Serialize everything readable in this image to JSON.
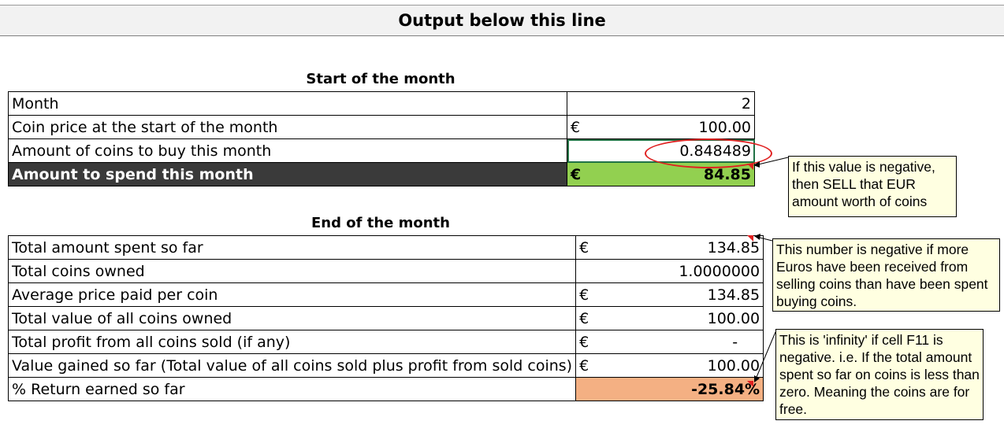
{
  "banner": {
    "title": "Output below this line"
  },
  "start_section": {
    "title": "Start of the month",
    "rows": [
      {
        "label": "Month",
        "currency": "",
        "value": "2"
      },
      {
        "label": "Coin price at the start of the month",
        "currency": "€",
        "value": "100.00"
      },
      {
        "label": "Amount of coins to buy this month",
        "currency": "",
        "value": "0.848489"
      },
      {
        "label": "Amount to spend this month",
        "currency": "€",
        "value": "84.85"
      }
    ]
  },
  "end_section": {
    "title": "End of the month",
    "rows": [
      {
        "label": "Total amount spent so far",
        "currency": "€",
        "value": "134.85"
      },
      {
        "label": "Total coins owned",
        "currency": "",
        "value": "1.0000000"
      },
      {
        "label": "Average price paid per coin",
        "currency": "€",
        "value": "134.85"
      },
      {
        "label": "Total value of all coins owned",
        "currency": "€",
        "value": "100.00"
      },
      {
        "label": "Total profit from all coins sold (if any)",
        "currency": "€",
        "value": "-"
      },
      {
        "label": "Value gained so far (Total value of all coins sold plus profit from sold coins)",
        "currency": "€",
        "value": "100.00"
      },
      {
        "label": "% Return earned so far",
        "currency": "",
        "value": "-25.84%"
      }
    ]
  },
  "comments": {
    "negative_sell": "If this value is negative, then SELL that EUR amount worth of coins",
    "negative_spent": "This number is negative if more Euros have been received from selling coins than have been spent buying coins.",
    "infinity": "This is 'infinity' if cell F11 is negative. i.e. If the total amount spent so far on coins is less than zero. Meaning the coins are for free."
  },
  "colors": {
    "dark_row": "#3a3a3a",
    "green_cell": "#92d050",
    "orange_cell": "#f4b083",
    "comment_bg": "#ffffe1",
    "annotation_red": "#e02020"
  }
}
